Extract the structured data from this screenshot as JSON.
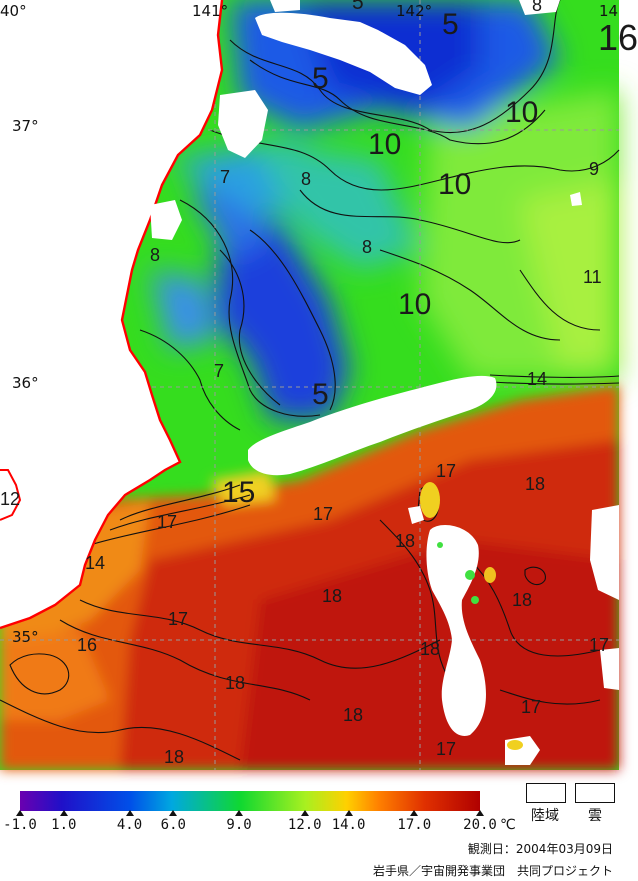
{
  "map": {
    "longitude_labels": [
      "40°",
      "141°",
      "142°",
      "14"
    ],
    "latitude_labels": [
      "37°",
      "36°",
      "35°"
    ],
    "isotherm_labels": [
      "5",
      "5",
      "8",
      "16",
      "5",
      "10",
      "10",
      "10",
      "9",
      "7",
      "8",
      "8",
      "8",
      "11",
      "10",
      "7",
      "5",
      "14",
      "15",
      "12",
      "17",
      "17",
      "18",
      "17",
      "18",
      "14",
      "18",
      "18",
      "17",
      "16",
      "18",
      "17",
      "18",
      "17",
      "18",
      "18",
      "17"
    ],
    "colors": {
      "land": "#ffffff",
      "cloud": "#ffffff",
      "coastline": "#ff0000",
      "grid": "#9a9a9a",
      "contour": "#111111",
      "cold_blue": "#0a2fd6",
      "mid_green": "#31e21a",
      "light_green": "#8ff03a",
      "warm_orange": "#e3560c",
      "hot_red": "#c2140a"
    }
  },
  "colorbar": {
    "tick_labels": [
      "-1.0",
      "1.0",
      "4.0",
      "6.0",
      "9.0",
      "12.0",
      "14.0",
      "17.0",
      "20.0"
    ],
    "tick_values": [
      -1.0,
      1.0,
      4.0,
      6.0,
      9.0,
      12.0,
      14.0,
      17.0,
      20.0
    ],
    "range": [
      -1.0,
      20.0
    ],
    "unit": "℃",
    "stops": [
      "#6a00b0",
      "#2010c8",
      "#0050e8",
      "#00a8e0",
      "#10d830",
      "#a8f020",
      "#ffd000",
      "#ff8000",
      "#e03000",
      "#b00000"
    ]
  },
  "legend": {
    "land_label": "陸域",
    "cloud_label": "雲"
  },
  "footer": {
    "observation_date": "観測日：2004年03月09日",
    "credit": "岩手県／宇宙開発事業団　共同プロジェクト"
  }
}
